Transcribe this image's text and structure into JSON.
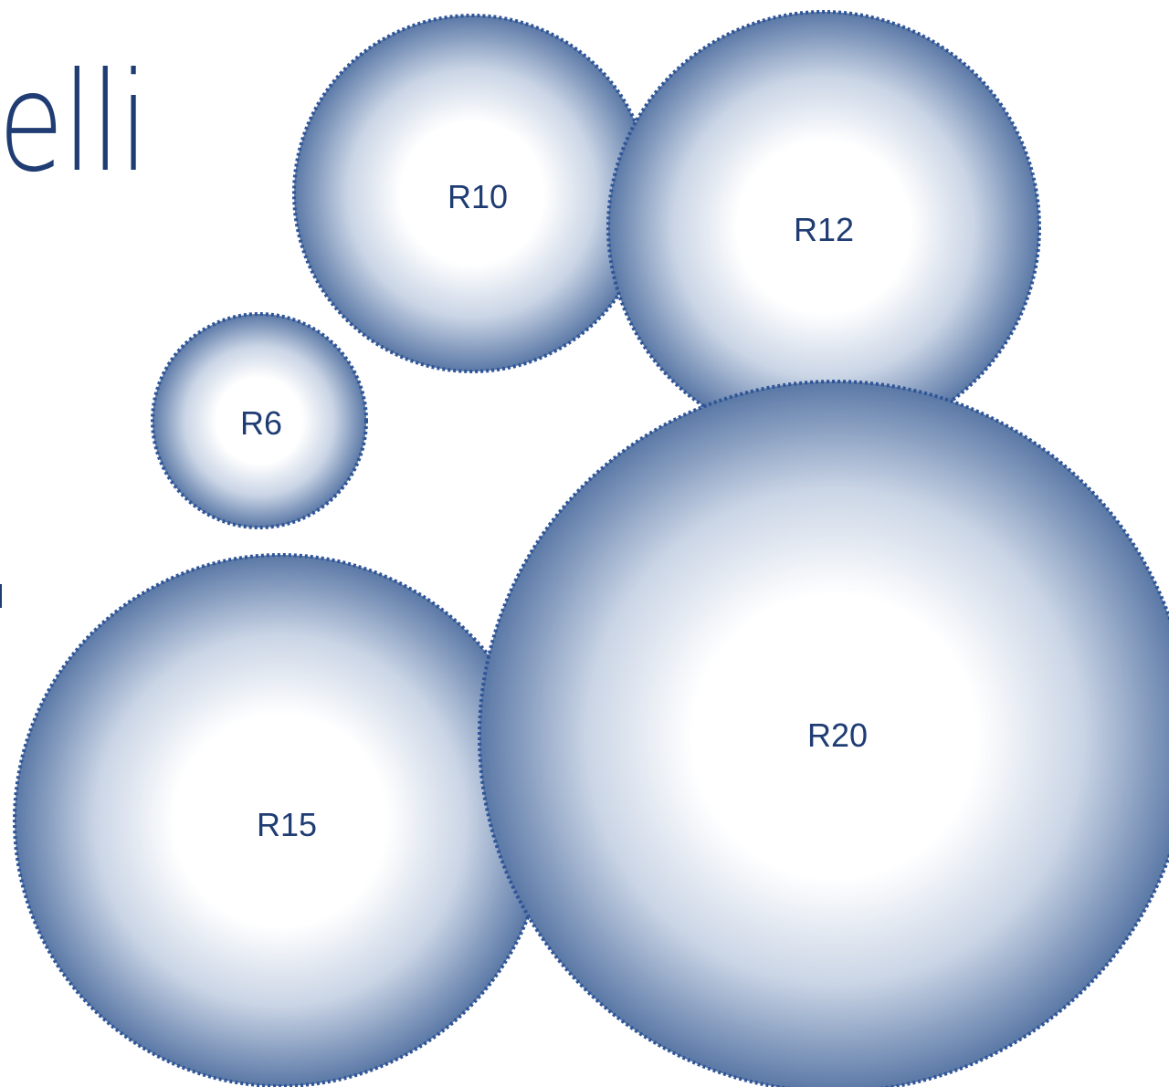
{
  "title_fragment": "elli",
  "colors": {
    "edge": "#4f6e9f",
    "center": "#ffffff",
    "stroke": "#2f5597",
    "text": "#1f3c73"
  },
  "bubbles": [
    {
      "id": "r10",
      "label": "R10"
    },
    {
      "id": "r12",
      "label": "R12"
    },
    {
      "id": "r6",
      "label": "R6"
    },
    {
      "id": "r15",
      "label": "R15"
    },
    {
      "id": "r20",
      "label": "R20"
    }
  ]
}
